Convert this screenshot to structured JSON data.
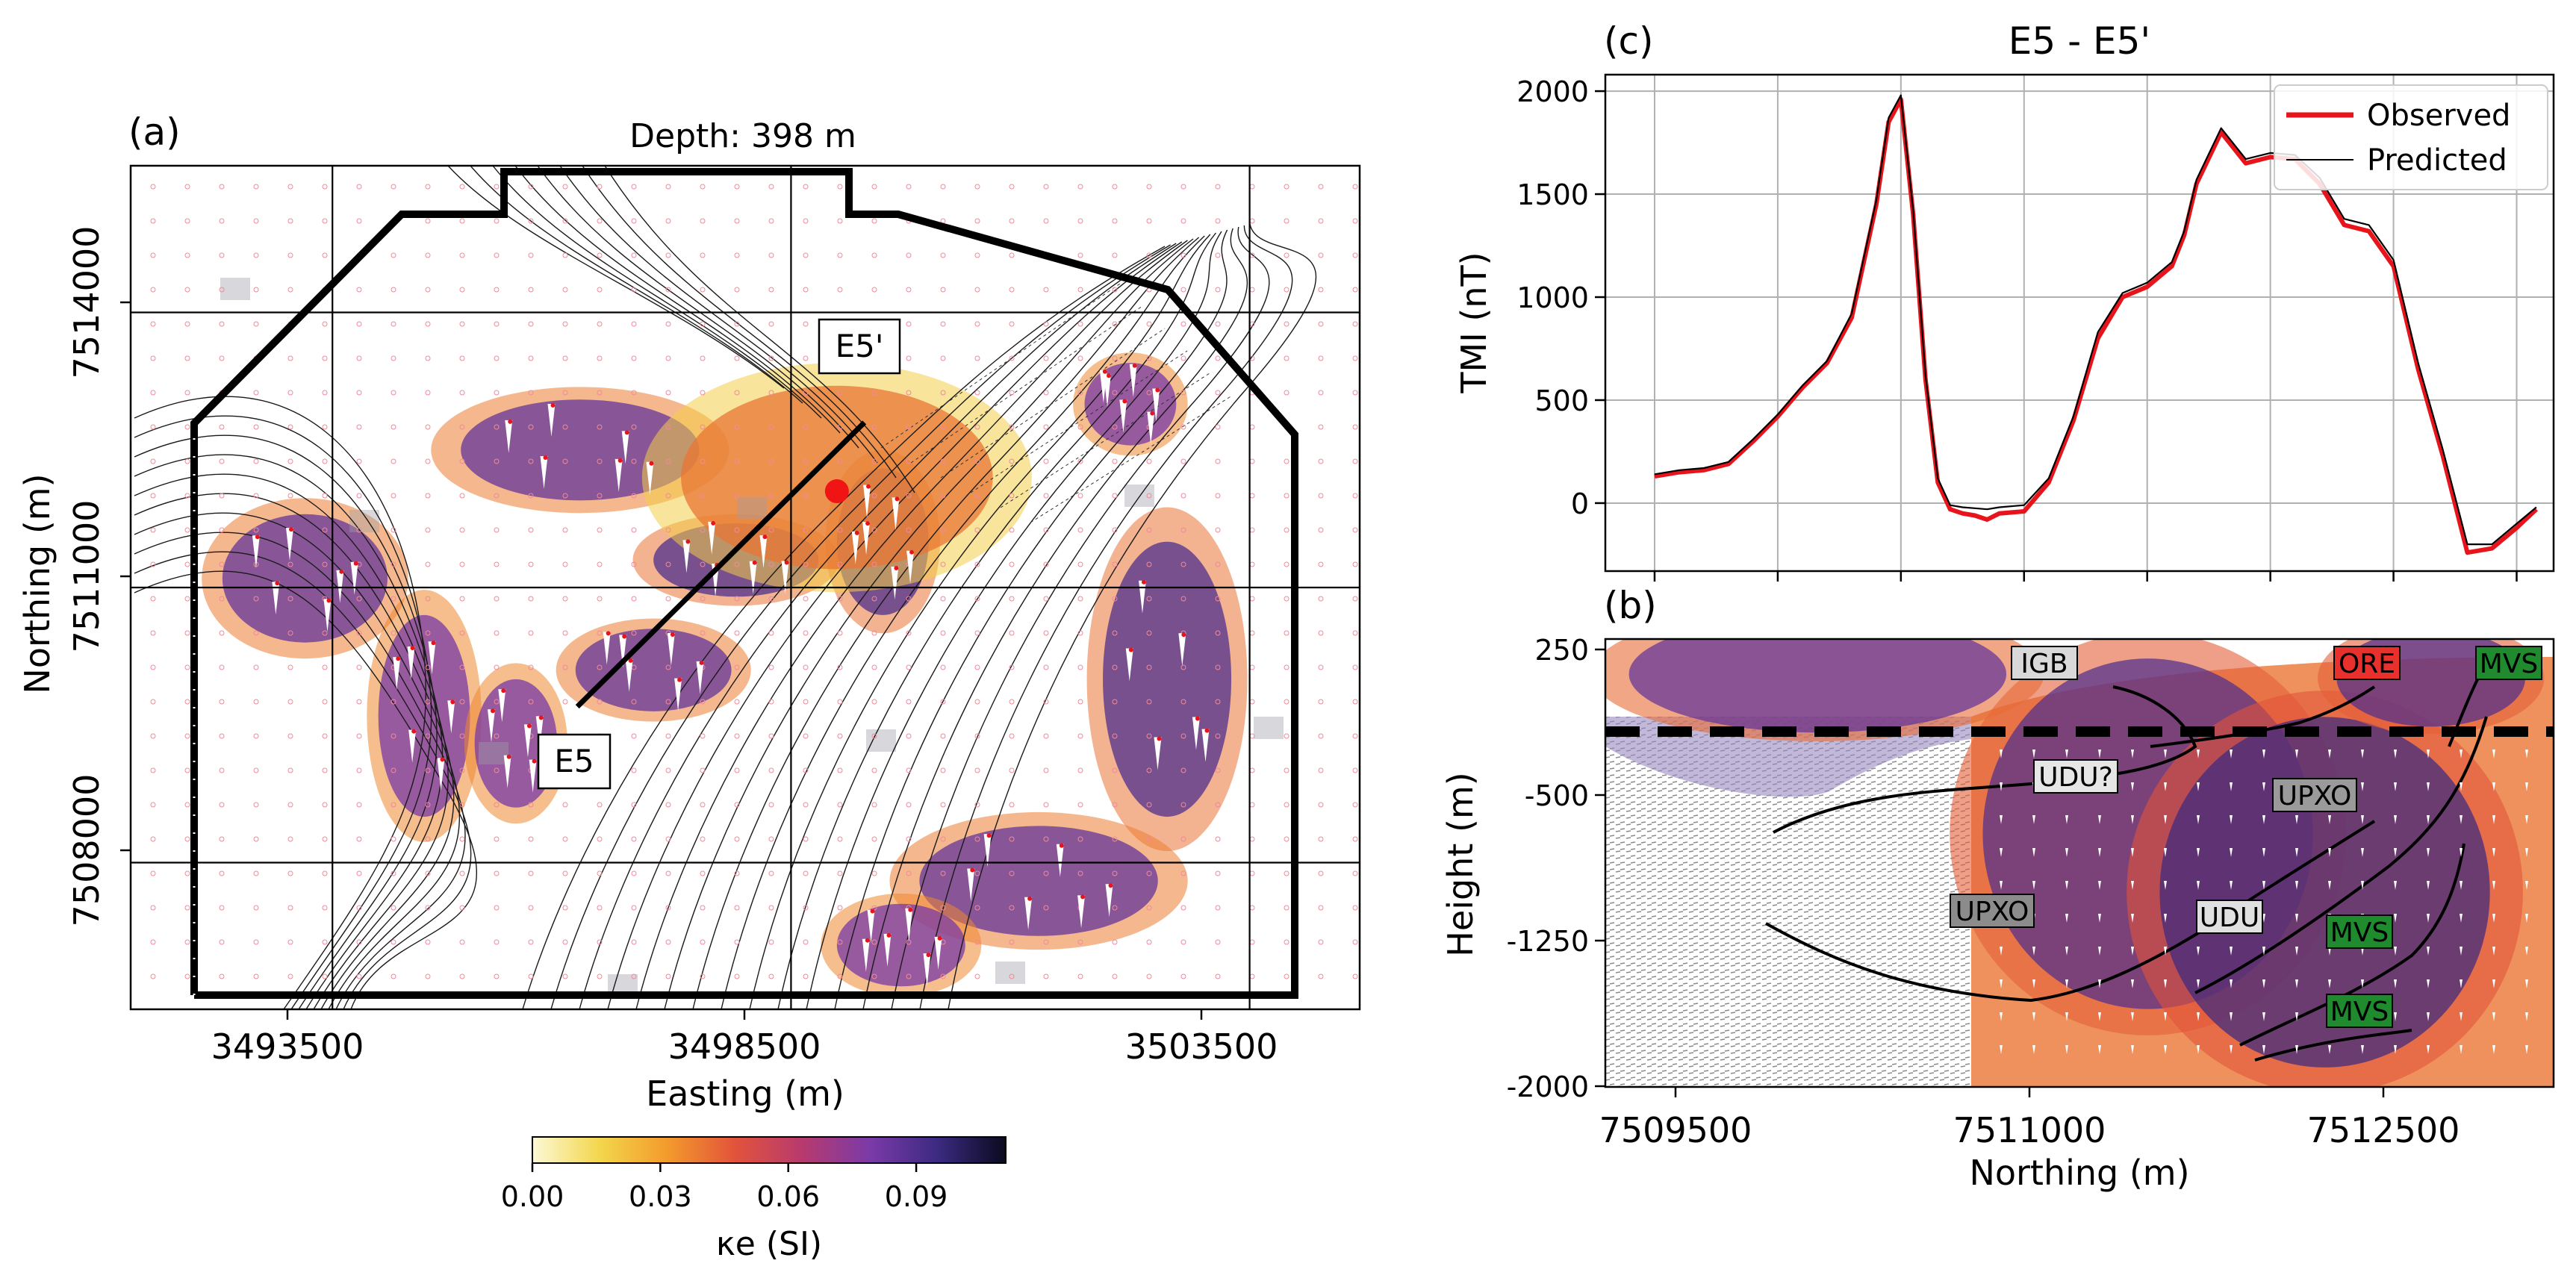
{
  "panels": {
    "a": {
      "label": "(a)",
      "title": "Depth: 398 m",
      "xlabel": "Easting (m)",
      "ylabel": "Northing (m)",
      "xticks": [
        "3493500",
        "3498500",
        "3503500"
      ],
      "yticks": [
        "7514000",
        "7511000",
        "7508000"
      ],
      "section_start": "E5",
      "section_end": "E5'"
    },
    "c": {
      "label": "(c)",
      "title": "E5 - E5'",
      "ylabel": "TMI (nT)",
      "yticks": [
        "2000",
        "1500",
        "1000",
        "500",
        "0"
      ],
      "legend": [
        "Observed",
        "Predicted"
      ]
    },
    "b": {
      "label": "(b)",
      "xlabel": "Northing (m)",
      "ylabel": "Height (m)",
      "xticks": [
        "7509500",
        "7511000",
        "7512500"
      ],
      "yticks": [
        "250",
        "-500",
        "-1250",
        "-2000"
      ],
      "units": [
        {
          "text": "IGB",
          "color": "#d9d9d9"
        },
        {
          "text": "ORE",
          "color": "#e8302c"
        },
        {
          "text": "MVS",
          "color": "#1f8a2e"
        },
        {
          "text": "UDU?",
          "color": "#e6e6e6"
        },
        {
          "text": "UPXO",
          "color": "#9a9a9a"
        },
        {
          "text": "UPXO",
          "color": "#8c8c8c"
        },
        {
          "text": "UDU",
          "color": "#e0e0e0"
        },
        {
          "text": "MVS",
          "color": "#1f8a2e"
        },
        {
          "text": "MVS",
          "color": "#1f8a2e"
        }
      ]
    }
  },
  "colorbar": {
    "label": "κe (SI)",
    "ticks": [
      "0.00",
      "0.03",
      "0.06",
      "0.09"
    ],
    "range": [
      0,
      0.111
    ],
    "colormap": [
      "#fcf9d6",
      "#f3d64b",
      "#f39a2c",
      "#e2533b",
      "#b73a6f",
      "#7a3aa8",
      "#3b2a80",
      "#0a0a1e"
    ]
  },
  "chart_data": [
    {
      "type": "line",
      "panel": "c",
      "x_unit": "Northing (m)",
      "x": [
        7509500,
        7509600,
        7509700,
        7509800,
        7509900,
        7510000,
        7510100,
        7510200,
        7510300,
        7510400,
        7510450,
        7510500,
        7510550,
        7510600,
        7510650,
        7510700,
        7510750,
        7510800,
        7510850,
        7510900,
        7511000,
        7511100,
        7511200,
        7511300,
        7511400,
        7511500,
        7511600,
        7511650,
        7511700,
        7511800,
        7511900,
        7512000,
        7512100,
        7512200,
        7512300,
        7512400,
        7512500,
        7512600,
        7512700,
        7512800,
        7512900,
        7513000,
        7513080
      ],
      "series": [
        {
          "name": "Observed",
          "color": "#e8141c",
          "values": [
            130,
            150,
            160,
            190,
            300,
            420,
            560,
            680,
            900,
            1450,
            1850,
            1960,
            1400,
            600,
            100,
            -30,
            -50,
            -60,
            -80,
            -50,
            -40,
            100,
            400,
            800,
            1000,
            1050,
            1150,
            1300,
            1550,
            1800,
            1650,
            1680,
            1670,
            1550,
            1350,
            1320,
            1150,
            650,
            230,
            -240,
            -220,
            -120,
            -30
          ]
        },
        {
          "name": "Predicted",
          "color": "#000000",
          "values": [
            140,
            160,
            170,
            200,
            310,
            430,
            570,
            690,
            920,
            1470,
            1870,
            1980,
            1420,
            620,
            120,
            -10,
            -20,
            -25,
            -30,
            -20,
            -10,
            120,
            420,
            830,
            1020,
            1070,
            1170,
            1320,
            1570,
            1820,
            1670,
            1700,
            1690,
            1580,
            1380,
            1350,
            1180,
            680,
            260,
            -200,
            -200,
            -100,
            -20
          ]
        }
      ],
      "xlim": [
        7509300,
        7513150
      ],
      "ylim": [
        -330,
        2080
      ],
      "grid": true,
      "legend_position": "top-right"
    },
    {
      "type": "heatmap",
      "panel": "a",
      "x_unit": "Easting (m)",
      "y_unit": "Northing (m)",
      "xlim": [
        3491300,
        3504700
      ],
      "ylim": [
        7506400,
        7515600
      ],
      "section_line": [
        [
          3496170,
          7509700
        ],
        [
          3499300,
          7512800
        ]
      ],
      "observation_point": [
        3499000,
        7512050
      ],
      "anomalies": [
        {
          "x": 3493200,
          "y": 7511100,
          "rx": 900,
          "ry": 700,
          "k": 0.085
        },
        {
          "x": 3496200,
          "y": 7512500,
          "rx": 1300,
          "ry": 550,
          "k": 0.085
        },
        {
          "x": 3497900,
          "y": 7511300,
          "rx": 900,
          "ry": 400,
          "k": 0.09
        },
        {
          "x": 3499500,
          "y": 7511500,
          "rx": 500,
          "ry": 800,
          "k": 0.09
        },
        {
          "x": 3497000,
          "y": 7510100,
          "rx": 850,
          "ry": 450,
          "k": 0.085
        },
        {
          "x": 3494500,
          "y": 7509600,
          "rx": 500,
          "ry": 1100,
          "k": 0.08
        },
        {
          "x": 3495500,
          "y": 7509300,
          "rx": 450,
          "ry": 700,
          "k": 0.08
        },
        {
          "x": 3502600,
          "y": 7510000,
          "rx": 700,
          "ry": 1500,
          "k": 0.09
        },
        {
          "x": 3501200,
          "y": 7507800,
          "rx": 1300,
          "ry": 600,
          "k": 0.085
        },
        {
          "x": 3499700,
          "y": 7507100,
          "rx": 700,
          "ry": 450,
          "k": 0.08
        },
        {
          "x": 3502200,
          "y": 7513000,
          "rx": 500,
          "ry": 450,
          "k": 0.08
        },
        {
          "x": 3499000,
          "y": 7512200,
          "rx": 1700,
          "ry": 1000,
          "k": 0.04
        }
      ]
    },
    {
      "type": "heatmap",
      "panel": "b",
      "x_unit": "Northing (m)",
      "y_unit": "Height (m)",
      "xlim": [
        7509300,
        7513320
      ],
      "ylim": [
        -2000,
        300
      ],
      "surface_line_height": 0,
      "anomalies": [
        {
          "x": 7511600,
          "y": -700,
          "rx": 700,
          "ry": 900,
          "k": 0.09
        },
        {
          "x": 7512350,
          "y": -1000,
          "rx": 700,
          "ry": 900,
          "k": 0.095
        },
        {
          "x": 7510200,
          "y": 120,
          "rx": 800,
          "ry": 300,
          "k": 0.085
        },
        {
          "x": 7512800,
          "y": 100,
          "rx": 400,
          "ry": 250,
          "k": 0.09
        }
      ]
    }
  ]
}
